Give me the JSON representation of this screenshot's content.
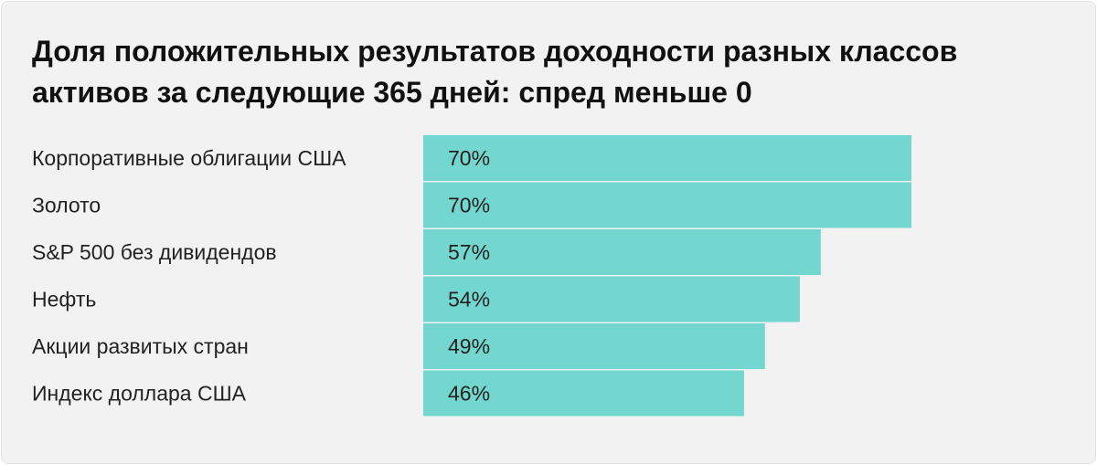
{
  "chart_data": {
    "type": "bar",
    "orientation": "horizontal",
    "title": "Доля положительных результатов доходности разных классов\nактивов за следующие 365 дней: спред меньше 0",
    "categories": [
      "Корпоративные облигации США",
      "Золото",
      "S&P 500 без дивидендов",
      "Нефть",
      "Акции развитых стран",
      "Индекс доллара США"
    ],
    "values": [
      70,
      70,
      57,
      54,
      49,
      46
    ],
    "value_labels": [
      "70%",
      "70%",
      "57%",
      "54%",
      "49%",
      "46%"
    ],
    "unit": "%",
    "bar_color": "#73d6cf",
    "grid": false,
    "legend": "none"
  }
}
